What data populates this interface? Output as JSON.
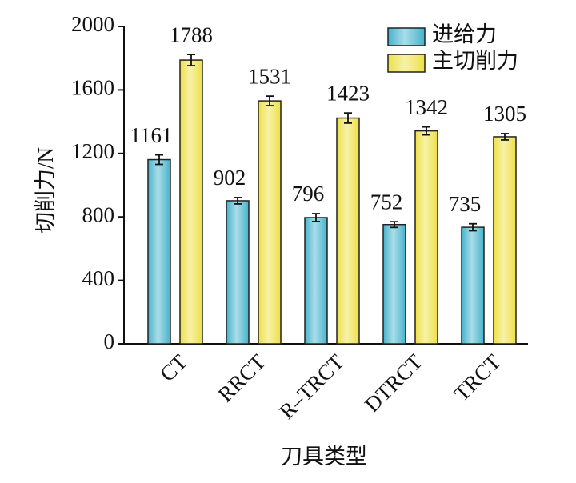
{
  "chart_data": {
    "type": "bar",
    "y_label": "切削力/N",
    "x_label": "刀具类型",
    "categories": [
      "CT",
      "RRCT",
      "R–TRCT",
      "DTRCT",
      "TRCT"
    ],
    "series": [
      {
        "name": "进给力",
        "color": "#3fb3cc",
        "values": [
          1161,
          902,
          796,
          752,
          735
        ],
        "errors": [
          30,
          20,
          25,
          18,
          22
        ]
      },
      {
        "name": "主切削力",
        "color": "#eee03a",
        "values": [
          1788,
          1531,
          1423,
          1342,
          1305
        ],
        "errors": [
          35,
          30,
          32,
          25,
          20
        ]
      }
    ],
    "ylim": [
      0,
      2000
    ],
    "yticks": [
      0,
      400,
      800,
      1200,
      1600,
      2000
    ],
    "legend": "upper right"
  }
}
